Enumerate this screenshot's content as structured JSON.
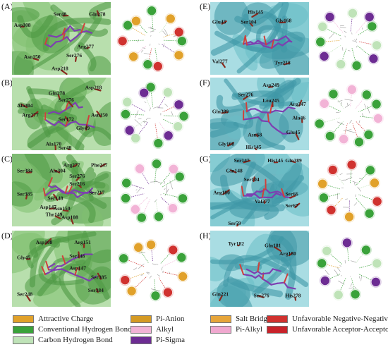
{
  "panels": [
    {
      "label": "(A)",
      "residues": [
        "Asp108",
        "Ser48",
        "Gln278",
        "Asn150",
        "Ser276",
        "Arg277",
        "Asp218"
      ],
      "nodes": [
        "",
        "",
        "",
        "",
        "",
        "",
        "",
        "",
        "",
        ""
      ]
    },
    {
      "label": "(B)",
      "residues": [
        "Asp218",
        "Gln278",
        "Ser276",
        "Ala304",
        "Arg277",
        "Asn150",
        "Ser172",
        "Gly49",
        "Ala170",
        "Ser48"
      ],
      "nodes": [
        "",
        "",
        "",
        "",
        "",
        "",
        "",
        "",
        "",
        ""
      ]
    },
    {
      "label": "(C)",
      "residues": [
        "Arg277",
        "Ala304",
        "Phe247",
        "Ser384",
        "Ser276",
        "Ser216",
        "Ser385",
        "Ser217",
        "Ser148",
        "Asp147",
        "Asn150",
        "Thr149",
        "Asp108"
      ],
      "nodes": [
        "",
        "",
        "",
        "",
        "",
        "",
        "",
        "",
        ""
      ]
    },
    {
      "label": "(D)",
      "residues": [
        "Asp108",
        "Arg151",
        "Gly45",
        "Ser148",
        "Asp147",
        "Ser385",
        "Ser248",
        "Ser384"
      ],
      "nodes": [
        "",
        "",
        "",
        "",
        "",
        "",
        "",
        "",
        ""
      ]
    },
    {
      "label": "(E)",
      "residues": [
        "His145",
        "Glu45",
        "Ser104",
        "Gly168",
        "Val277",
        "Tyr218"
      ],
      "nodes": [
        "",
        "",
        "",
        "",
        "",
        "",
        "",
        "",
        ""
      ]
    },
    {
      "label": "(F)",
      "residues": [
        "Asp249",
        "Ser276",
        "Leu245",
        "Arg247",
        "Gln389",
        "Ala46",
        "Asn68",
        "Glu45",
        "Gly168",
        "His145"
      ],
      "nodes": [
        "",
        "",
        "",
        "",
        "",
        "",
        "",
        "",
        ""
      ]
    },
    {
      "label": "(G)",
      "residues": [
        "Ser147",
        "His145",
        "Gln389",
        "Gln148",
        "Ser104",
        "Arg180",
        "Ser66",
        "Val277",
        "Ser67",
        "Ser59"
      ],
      "nodes": [
        "",
        "",
        "",
        "",
        "",
        "",
        "",
        "",
        ""
      ]
    },
    {
      "label": "(H)",
      "residues": [
        "Tyr182",
        "Gln181",
        "Arg180",
        "Gln221",
        "Ser276",
        "His278"
      ],
      "nodes": [
        "",
        "",
        "",
        "",
        "",
        "",
        "",
        "",
        ""
      ]
    }
  ],
  "legend": {
    "items": [
      {
        "label": "Attractive Charge",
        "color": "#e1a12a"
      },
      {
        "label": "Pi-Anion",
        "color": "#d49a24"
      },
      {
        "label": "Salt Bridge",
        "color": "#e6a53a"
      },
      {
        "label": "Unfavorable Negative-Negative",
        "color": "#d0322f"
      },
      {
        "label": "Conventional Hydrogen Bond",
        "color": "#3aa23a"
      },
      {
        "label": "Alkyl",
        "color": "#f2b3d6"
      },
      {
        "label": "Pi-Alkyl",
        "color": "#f0a8cf"
      },
      {
        "label": "Unfavorable Acceptor-Acceptor",
        "color": "#c8222a"
      },
      {
        "label": "Carbon Hydrogen Bond",
        "color": "#bfe3b8"
      },
      {
        "label": "Pi-Sigma",
        "color": "#6d2c93"
      }
    ]
  },
  "colors": {
    "protein_green": "#7fbf6f",
    "protein_teal": "#69bdc7",
    "ligand_purple": "#7d3fb1",
    "residue_red": "#8a2a1f"
  }
}
